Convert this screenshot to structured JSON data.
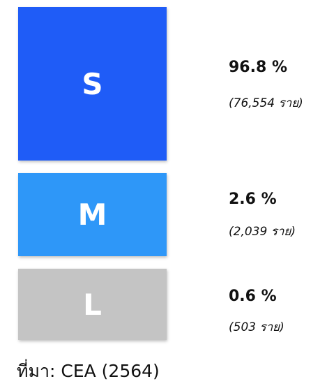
{
  "items": [
    {
      "label": "S",
      "share": "96.8 %",
      "count": "(76,554 ราย)",
      "color": "#1f5cf7"
    },
    {
      "label": "M",
      "share": "2.6 %",
      "count": "(2,039 ราย)",
      "color": "#2e97f8"
    },
    {
      "label": "L",
      "share": "0.6 %",
      "count": "(503 ราย)",
      "color": "#c4c4c4"
    }
  ],
  "source": "ที่มา: CEA (2564)"
}
